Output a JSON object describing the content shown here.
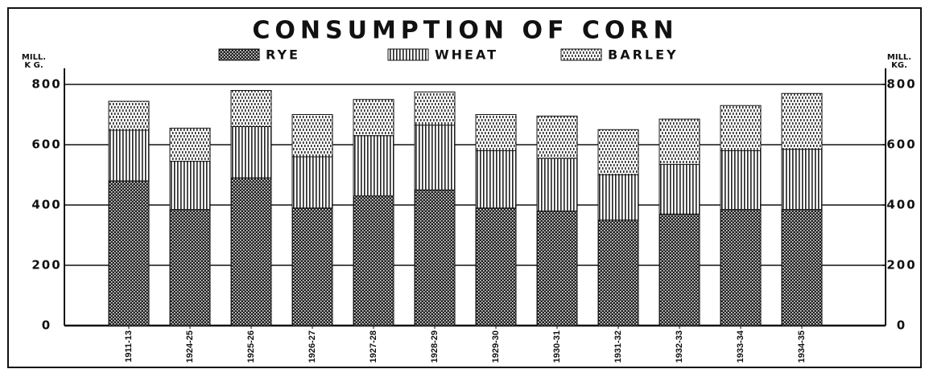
{
  "chart_data": {
    "type": "stacked_bar",
    "title": "CONSUMPTION OF CORN",
    "y_axis_label": [
      "MILL.",
      "K G."
    ],
    "y2_axis_label": [
      "MILL.",
      "KG."
    ],
    "categories": [
      "1911-13",
      "1924-25",
      "1925-26",
      "1926-27",
      "1927-28",
      "1928-29",
      "1929-30",
      "1930-31",
      "1931-32",
      "1932-33",
      "1933-34",
      "1934-35"
    ],
    "series": [
      {
        "name": "RYE",
        "color": "#222222",
        "pattern": "dots",
        "values": [
          480,
          385,
          490,
          390,
          430,
          450,
          390,
          380,
          350,
          370,
          385,
          385
        ]
      },
      {
        "name": "WHEAT",
        "color": "#222222",
        "pattern": "vertical",
        "values": [
          168,
          160,
          170,
          170,
          200,
          215,
          190,
          175,
          150,
          165,
          195,
          200
        ]
      },
      {
        "name": "BARLEY",
        "color": "#222222",
        "pattern": "dashes",
        "values": [
          96,
          110,
          120,
          140,
          120,
          110,
          120,
          140,
          150,
          150,
          150,
          185
        ]
      }
    ],
    "ylim": [
      0,
      800
    ],
    "yticks": [
      0,
      200,
      400,
      600,
      800
    ],
    "y2lim": [
      0,
      800
    ],
    "y2ticks": [
      0,
      200,
      400,
      600,
      800
    ],
    "grid": true
  }
}
